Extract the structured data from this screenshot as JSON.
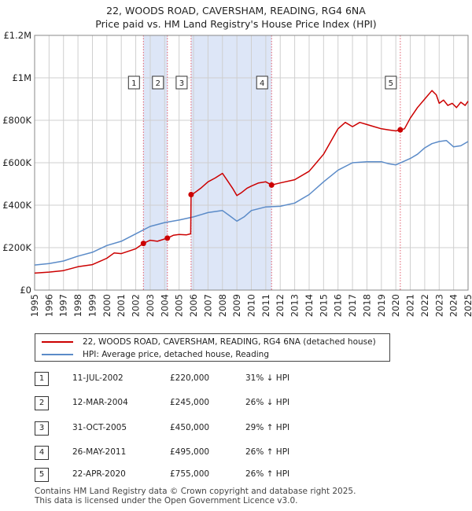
{
  "title_line1": "22, WOODS ROAD, CAVERSHAM, READING, RG4 6NA",
  "title_line2": "Price paid vs. HM Land Registry's House Price Index (HPI)",
  "colors": {
    "property": "#cc0000",
    "hpi": "#5b8bc8",
    "shade": "#dde6f7",
    "marker_line": "#e05a6a",
    "grid": "#cfcfcf"
  },
  "legend": {
    "property_label": "22, WOODS ROAD, CAVERSHAM, READING, RG4 6NA (detached house)",
    "hpi_label": "HPI: Average price, detached house, Reading"
  },
  "sales": [
    {
      "num": "1",
      "date": "11-JUL-2002",
      "price": "£220,000",
      "hpi": "31% ↓ HPI"
    },
    {
      "num": "2",
      "date": "12-MAR-2004",
      "price": "£245,000",
      "hpi": "26% ↓ HPI"
    },
    {
      "num": "3",
      "date": "31-OCT-2005",
      "price": "£450,000",
      "hpi": "29% ↑ HPI"
    },
    {
      "num": "4",
      "date": "26-MAY-2011",
      "price": "£495,000",
      "hpi": "26% ↑ HPI"
    },
    {
      "num": "5",
      "date": "22-APR-2020",
      "price": "£755,000",
      "hpi": "26% ↑ HPI"
    }
  ],
  "footer_line1": "Contains HM Land Registry data © Crown copyright and database right 2025.",
  "footer_line2": "This data is licensed under the Open Government Licence v3.0.",
  "chart_data": {
    "type": "line",
    "title": "22, WOODS ROAD, CAVERSHAM, READING, RG4 6NA — Price paid vs. HM Land Registry's House Price Index (HPI)",
    "xlabel": "",
    "ylabel": "",
    "xlim": [
      1995,
      2025
    ],
    "ylim": [
      0,
      1200000
    ],
    "y_ticks": [
      0,
      200000,
      400000,
      600000,
      800000,
      1000000,
      1200000
    ],
    "y_tick_labels": [
      "£0",
      "£200K",
      "£400K",
      "£600K",
      "£800K",
      "£1M",
      "£1.2M"
    ],
    "x_ticks": [
      1995,
      1996,
      1997,
      1998,
      1999,
      2000,
      2001,
      2002,
      2003,
      2004,
      2005,
      2006,
      2007,
      2008,
      2009,
      2010,
      2011,
      2012,
      2013,
      2014,
      2015,
      2016,
      2017,
      2018,
      2019,
      2020,
      2021,
      2022,
      2023,
      2024,
      2025
    ],
    "grid": true,
    "shaded_ranges": [
      [
        2002.53,
        2004.19
      ],
      [
        2005.83,
        2011.4
      ]
    ],
    "sale_markers": [
      {
        "label": "1",
        "x": 2002.53,
        "y": 220000
      },
      {
        "label": "2",
        "x": 2004.19,
        "y": 245000
      },
      {
        "label": "3",
        "x": 2005.83,
        "y": 450000
      },
      {
        "label": "4",
        "x": 2011.4,
        "y": 495000
      },
      {
        "label": "5",
        "x": 2020.31,
        "y": 755000
      }
    ],
    "series": [
      {
        "name": "22, WOODS ROAD, CAVERSHAM, READING, RG4 6NA (detached house)",
        "x": [
          1995,
          1996,
          1997,
          1998,
          1999,
          2000,
          2000.5,
          2001,
          2002,
          2002.53,
          2003,
          2003.5,
          2004.19,
          2004.6,
          2005,
          2005.5,
          2005.8,
          2005.83,
          2006,
          2006.5,
          2007,
          2007.5,
          2008,
          2008.3,
          2008.7,
          2009,
          2009.3,
          2009.7,
          2010,
          2010.5,
          2011,
          2011.4,
          2012,
          2013,
          2014,
          2014.5,
          2015,
          2015.5,
          2016,
          2016.5,
          2017,
          2017.5,
          2018,
          2018.5,
          2019,
          2019.5,
          2020,
          2020.31,
          2020.6,
          2021,
          2021.5,
          2022,
          2022.5,
          2022.8,
          2023,
          2023.3,
          2023.6,
          2023.9,
          2024.2,
          2024.5,
          2024.8,
          2025
        ],
        "y": [
          80000,
          85000,
          92000,
          110000,
          120000,
          150000,
          175000,
          172000,
          195000,
          220000,
          235000,
          230000,
          245000,
          258000,
          262000,
          260000,
          265000,
          450000,
          455000,
          480000,
          510000,
          528000,
          550000,
          520000,
          480000,
          445000,
          458000,
          480000,
          490000,
          505000,
          510000,
          495000,
          505000,
          520000,
          560000,
          600000,
          640000,
          700000,
          760000,
          790000,
          770000,
          790000,
          780000,
          770000,
          760000,
          755000,
          750000,
          755000,
          760000,
          810000,
          860000,
          900000,
          940000,
          920000,
          880000,
          895000,
          870000,
          880000,
          860000,
          885000,
          870000,
          890000
        ]
      },
      {
        "name": "HPI: Average price, detached house, Reading",
        "x": [
          1995,
          1996,
          1997,
          1998,
          1999,
          2000,
          2001,
          2002,
          2003,
          2004,
          2005,
          2006,
          2007,
          2008,
          2008.5,
          2009,
          2009.5,
          2010,
          2011,
          2012,
          2013,
          2014,
          2015,
          2016,
          2017,
          2018,
          2019,
          2019.5,
          2020,
          2020.5,
          2021,
          2021.5,
          2022,
          2022.5,
          2023,
          2023.5,
          2024,
          2024.5,
          2025
        ],
        "y": [
          118000,
          125000,
          137000,
          160000,
          178000,
          210000,
          230000,
          265000,
          300000,
          318000,
          330000,
          345000,
          365000,
          375000,
          350000,
          325000,
          345000,
          375000,
          392000,
          395000,
          410000,
          450000,
          510000,
          565000,
          600000,
          605000,
          605000,
          595000,
          590000,
          605000,
          620000,
          640000,
          670000,
          690000,
          700000,
          705000,
          675000,
          680000,
          700000
        ]
      }
    ]
  }
}
